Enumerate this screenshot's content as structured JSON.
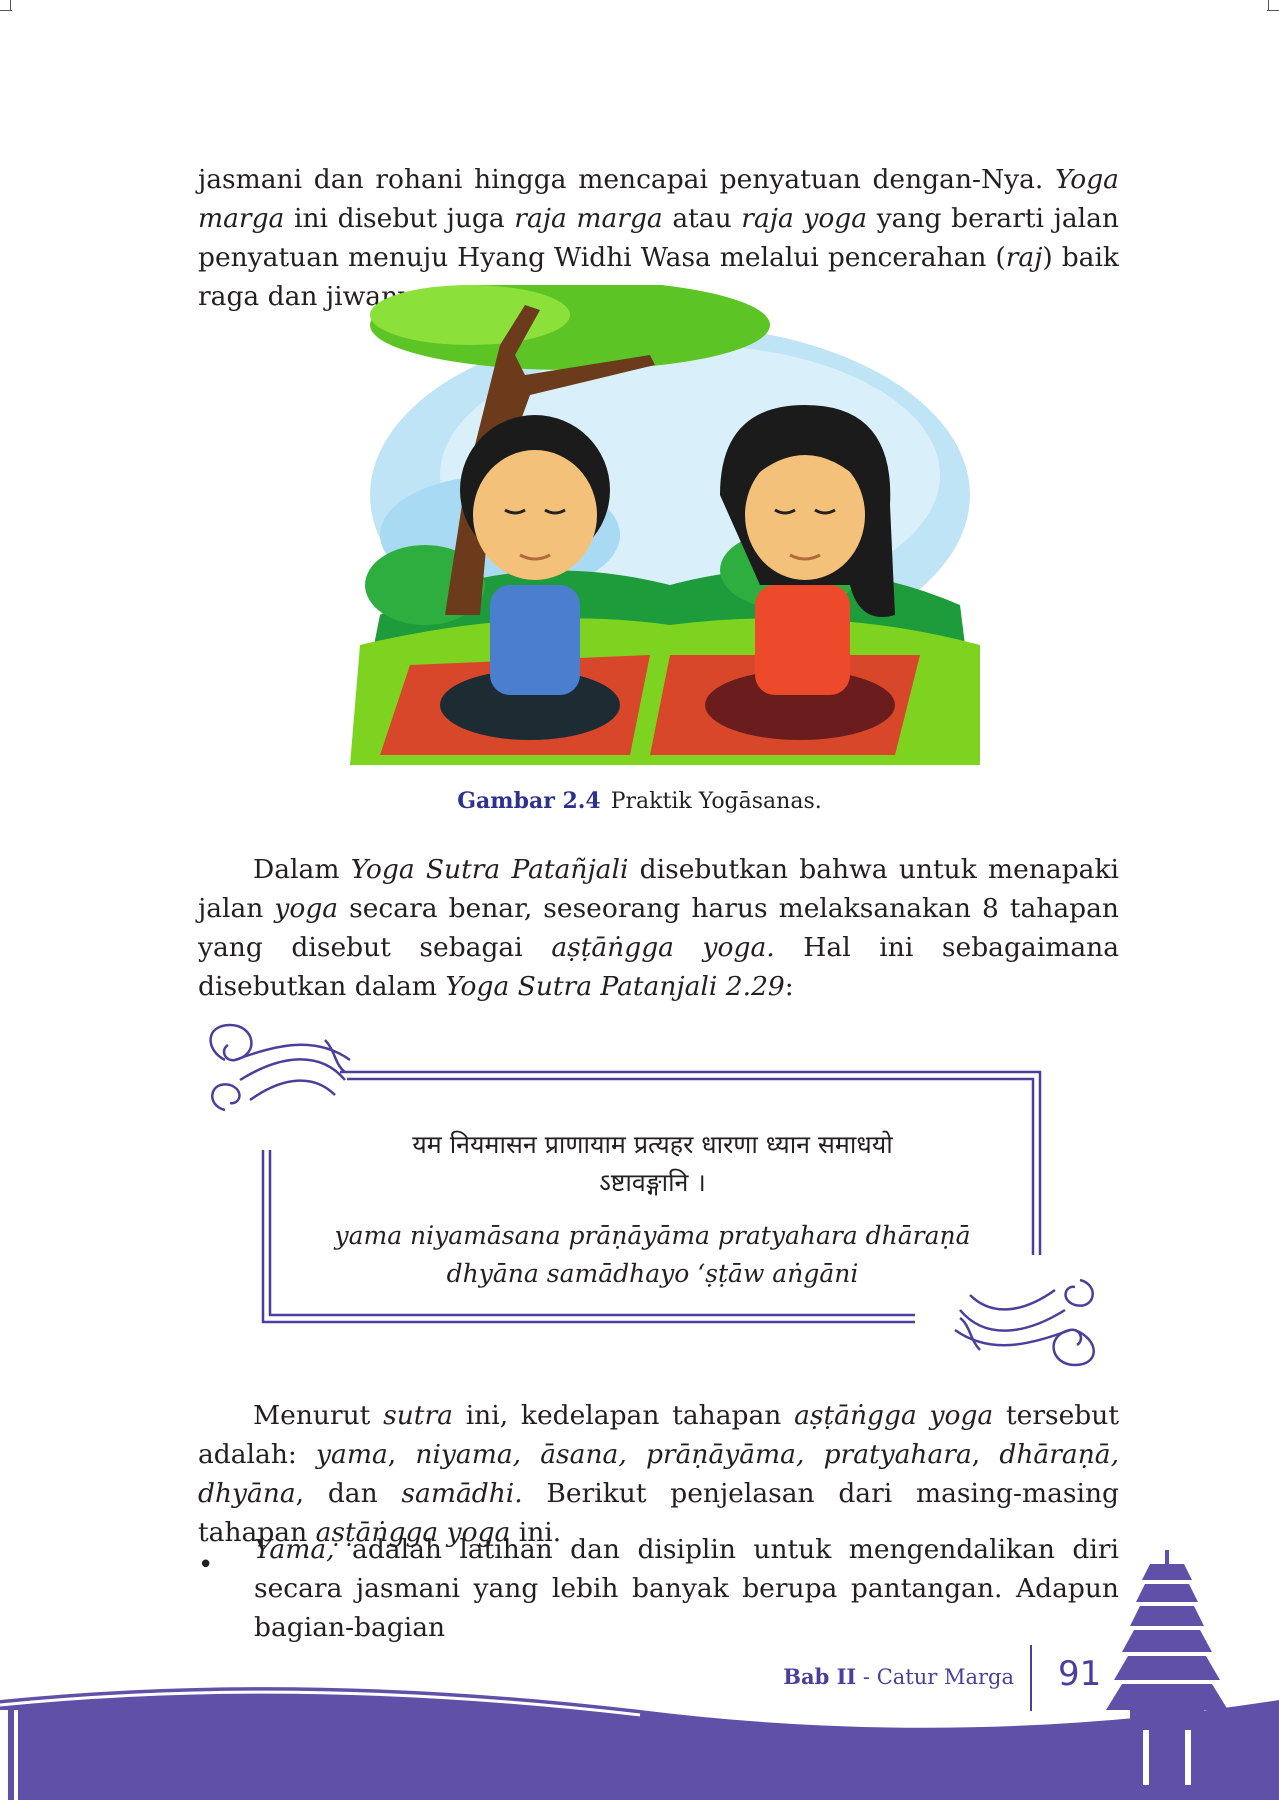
{
  "intro": {
    "parts": [
      {
        "t": "jasmani dan rohani hingga mencapai penyatuan dengan-Nya. ",
        "i": false
      },
      {
        "t": "Yoga marga",
        "i": true
      },
      {
        "t": " ini disebut juga ",
        "i": false
      },
      {
        "t": "raja marga",
        "i": true
      },
      {
        "t": " atau ",
        "i": false
      },
      {
        "t": "raja yoga",
        "i": true
      },
      {
        "t": " yang berarti jalan penyatuan menuju Hyang Widhi Wasa melalui pencerahan (",
        "i": false
      },
      {
        "t": "raj",
        "i": true
      },
      {
        "t": ") baik raga dan jiwanya.",
        "i": false
      }
    ]
  },
  "figure": {
    "label": "Gambar 2.4",
    "caption": "Praktik Yogāsanas."
  },
  "paragraph2": {
    "parts": [
      {
        "t": "Dalam ",
        "i": false
      },
      {
        "t": "Yoga Sutra Patañjali",
        "i": true
      },
      {
        "t": " disebutkan bahwa untuk menapaki jalan ",
        "i": false
      },
      {
        "t": "yoga",
        "i": true
      },
      {
        "t": " secara benar, seseorang harus melaksanakan 8 tahapan yang disebut sebagai ",
        "i": false
      },
      {
        "t": "aṣṭāṅgga yoga.",
        "i": true
      },
      {
        "t": " Hal ini sebagaimana disebutkan dalam ",
        "i": false
      },
      {
        "t": "Yoga Sutra Patanjali 2.29",
        "i": true
      },
      {
        "t": ":",
        "i": false
      }
    ]
  },
  "quote": {
    "sanskrit_line1": "यम नियमासन प्राणायाम प्रत्यहर धारणा ध्यान समाधयो",
    "sanskrit_line2": "ऽष्टावङ्गानि ।",
    "translit_line1": "yama niyamāsana prāṇāyāma pratyahara dhāraṇā",
    "translit_line2": "dhyāna samādhayo ‘ṣṭāw aṅgāni"
  },
  "paragraph3": {
    "parts": [
      {
        "t": "Menurut ",
        "i": false
      },
      {
        "t": "sutra",
        "i": true
      },
      {
        "t": " ini, kedelapan tahapan ",
        "i": false
      },
      {
        "t": "aṣṭāṅgga yoga",
        "i": true
      },
      {
        "t": " tersebut adalah: ",
        "i": false
      },
      {
        "t": "yama",
        "i": true
      },
      {
        "t": ", ",
        "i": false
      },
      {
        "t": "niyama, āsana, prāṇāyāma, pratyahara",
        "i": true
      },
      {
        "t": ", ",
        "i": false
      },
      {
        "t": "dhāraṇā, dhyāna",
        "i": true
      },
      {
        "t": ", dan ",
        "i": false
      },
      {
        "t": "samādhi.",
        "i": true
      },
      {
        "t": " Berikut penjelasan dari masing-masing tahapan ",
        "i": false
      },
      {
        "t": "aṣṭāṅgga yoga",
        "i": true
      },
      {
        "t": " ini.",
        "i": false
      }
    ]
  },
  "bullet": {
    "symbol": "•",
    "parts": [
      {
        "t": "Yama,",
        "i": true
      },
      {
        "t": " adalah latihan dan disiplin untuk mengendalikan diri secara jasmani yang lebih banyak berupa pantangan. Adapun bagian-bagian",
        "i": false
      }
    ]
  },
  "footer": {
    "chapter": "Bab II",
    "separator": " - ",
    "title": "Catur Marga",
    "page_number": "91"
  },
  "colors": {
    "accent": "#4b3f9b",
    "caption_label": "#2e3190",
    "footer_band": "#6150a8"
  }
}
